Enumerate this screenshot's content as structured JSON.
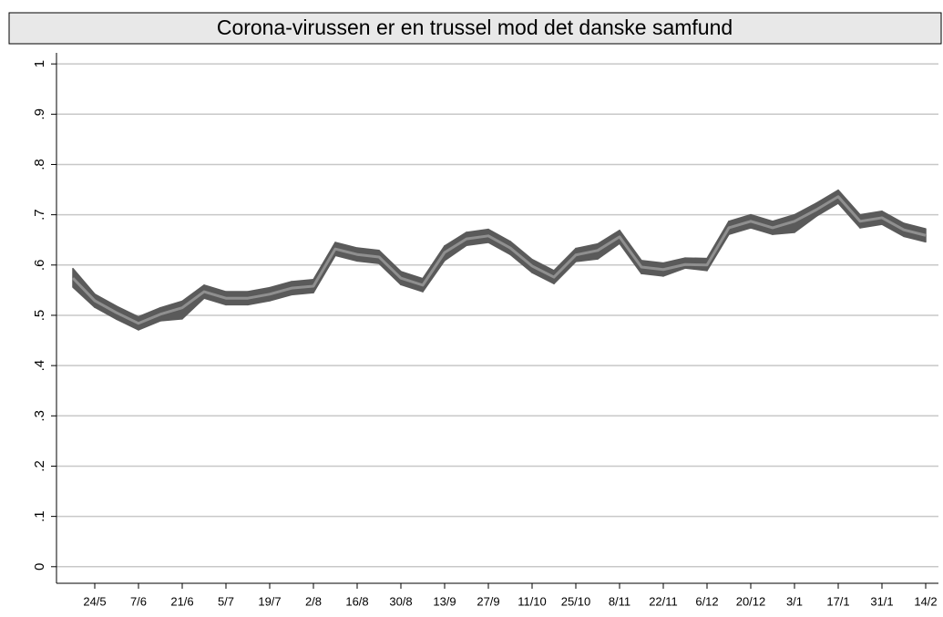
{
  "chart_data": {
    "type": "band-line",
    "title": "Corona-virussen er en trussel mod det danske samfund",
    "categories": [
      null,
      "24/5",
      null,
      "7/6",
      null,
      "21/6",
      null,
      "5/7",
      null,
      "19/7",
      null,
      "2/8",
      null,
      "16/8",
      null,
      "30/8",
      null,
      "13/9",
      null,
      "27/9",
      null,
      "11/10",
      null,
      "25/10",
      null,
      "8/11",
      null,
      "22/11",
      null,
      "6/12",
      null,
      "20/12",
      null,
      "3/1",
      null,
      "17/1",
      null,
      "31/1",
      null,
      "14/2"
    ],
    "values": [
      0.574,
      0.529,
      0.505,
      0.484,
      0.502,
      0.515,
      0.547,
      0.534,
      0.534,
      0.542,
      0.554,
      0.558,
      0.632,
      0.621,
      0.616,
      0.574,
      0.56,
      0.625,
      0.652,
      0.658,
      0.634,
      0.598,
      0.576,
      0.62,
      0.629,
      0.656,
      0.596,
      0.591,
      0.601,
      0.6,
      0.674,
      0.687,
      0.674,
      0.687,
      0.71,
      0.736,
      0.687,
      0.694,
      0.67,
      0.659
    ],
    "ci_lower": [
      0.556,
      0.516,
      0.492,
      0.471,
      0.489,
      0.493,
      0.534,
      0.521,
      0.521,
      0.529,
      0.541,
      0.545,
      0.619,
      0.608,
      0.603,
      0.561,
      0.547,
      0.609,
      0.639,
      0.645,
      0.621,
      0.585,
      0.563,
      0.607,
      0.612,
      0.643,
      0.583,
      0.578,
      0.594,
      0.589,
      0.661,
      0.674,
      0.661,
      0.665,
      0.697,
      0.723,
      0.674,
      0.681,
      0.657,
      0.646
    ],
    "ci_upper": [
      0.593,
      0.542,
      0.518,
      0.497,
      0.515,
      0.528,
      0.56,
      0.547,
      0.547,
      0.555,
      0.567,
      0.571,
      0.645,
      0.634,
      0.629,
      0.587,
      0.573,
      0.638,
      0.665,
      0.671,
      0.647,
      0.611,
      0.589,
      0.633,
      0.642,
      0.669,
      0.609,
      0.604,
      0.614,
      0.613,
      0.687,
      0.7,
      0.687,
      0.7,
      0.723,
      0.749,
      0.7,
      0.707,
      0.683,
      0.672
    ],
    "band_color": "#5a5a5a",
    "color": "#8f8f8f",
    "ylim": [
      -0.033,
      1.022
    ],
    "yticks": [
      0,
      {
        "value": 0.1,
        "label": ".1"
      },
      {
        "value": 0.2,
        "label": ".2"
      },
      {
        "value": 0.3,
        "label": ".3"
      },
      {
        "value": 0.4,
        "label": ".4"
      },
      {
        "value": 0.5,
        "label": ".5"
      },
      {
        "value": 0.6,
        "label": ".6"
      },
      {
        "value": 0.7,
        "label": ".7"
      },
      {
        "value": 0.8,
        "label": ".8"
      },
      {
        "value": 0.9,
        "label": ".9"
      },
      1
    ],
    "grid": true
  }
}
